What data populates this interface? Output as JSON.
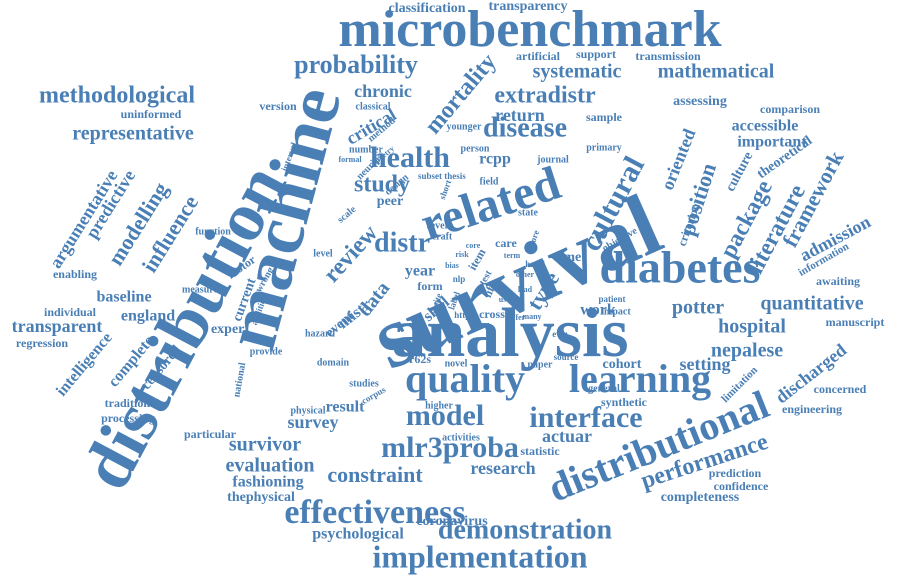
{
  "colors": {
    "word": "#4a7fb5",
    "background": "#ffffff"
  },
  "words": [
    "microbenchmark",
    "survival",
    "analysis",
    "distribution",
    "machine",
    "diabetes",
    "related",
    "quality",
    "learning",
    "distributional",
    "implementation",
    "effectiveness",
    "model",
    "interface",
    "health",
    "mlr3proba",
    "demonstration",
    "performance",
    "cultural",
    "disease",
    "study",
    "review",
    "distr",
    "probability",
    "methodological",
    "extradistr",
    "mortality",
    "representative",
    "systematic",
    "mathematical",
    "position",
    "package",
    "literature",
    "framework",
    "admission",
    "quantitative",
    "potter",
    "hospital",
    "nepalese",
    "discharged",
    "evaluation",
    "constraint",
    "research",
    "survey",
    "survivor",
    "result",
    "fashioning",
    "thephysical",
    "completeness",
    "coronavirus",
    "psychological",
    "setting",
    "actuar",
    "work",
    "cohort",
    "influence",
    "modelling",
    "predictive",
    "argumentative",
    "transparent",
    "england",
    "baseline",
    "intelligence",
    "complete",
    "censored",
    "classification",
    "transparency",
    "chronic",
    "critical",
    "return",
    "oriented",
    "accessible",
    "important",
    "theoretical",
    "assessing",
    "comparison",
    "sample",
    "rcpp",
    "type",
    "data",
    "year",
    "mistr",
    "time",
    "culture",
    "peer",
    "care",
    "skill",
    "event",
    "current",
    "expert",
    "enabling",
    "individual",
    "regression",
    "traditional",
    "processing",
    "particular",
    "engineering",
    "concerned",
    "prediction",
    "confidence",
    "manuscript",
    "awaiting",
    "information",
    "criterion",
    "limitation",
    "synthetic",
    "general",
    "higher",
    "activities",
    "statistic",
    "paper",
    "novel",
    "domain",
    "studies",
    "national",
    "provide",
    "physical",
    "measure",
    "function",
    "motor",
    "uninformed",
    "version",
    "classical",
    "method",
    "transmission",
    "artificial",
    "support",
    "field",
    "journal",
    "primary",
    "person",
    "younger",
    "neurips",
    "scale",
    "design",
    "number",
    "formal",
    "interval",
    "level",
    "addition",
    "hazard",
    "craft",
    "core",
    "state",
    "severe",
    "impact",
    "patient",
    "cross",
    "item",
    "life",
    "form",
    "wrong",
    "thesis",
    "subset",
    "short",
    "source",
    "many",
    "risk",
    "bias",
    "objective",
    "hand",
    "more",
    "term",
    "lead",
    "useful",
    "https",
    "nlp",
    "r62s",
    "corpus",
    "poetry",
    "other",
    "cause",
    "offer",
    "label",
    "site",
    "test",
    "ewu"
  ]
}
